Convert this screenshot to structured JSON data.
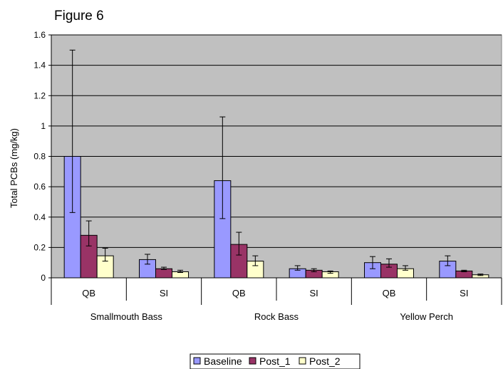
{
  "chart_data": {
    "type": "bar",
    "title": "Figure 6",
    "ylabel": "Total PCBs (mg/kg)",
    "xlabel": "",
    "ylim": [
      0,
      1.6
    ],
    "yticks": [
      0,
      0.2,
      0.4,
      0.6,
      0.8,
      1,
      1.2,
      1.4,
      1.6
    ],
    "ytick_labels": [
      "0",
      "0.2",
      "0.4",
      "0.6",
      "0.8",
      "1",
      "1.2",
      "1.4",
      "1.6"
    ],
    "grid": "horizontal",
    "legend_position": "bottom",
    "categories": [
      "QB",
      "SI",
      "QB",
      "SI",
      "QB",
      "SI"
    ],
    "groups": [
      {
        "label": "Smallmouth Bass",
        "categories": [
          "QB",
          "SI"
        ]
      },
      {
        "label": "Rock Bass",
        "categories": [
          "QB",
          "SI"
        ]
      },
      {
        "label": "Yellow Perch",
        "categories": [
          "QB",
          "SI"
        ]
      }
    ],
    "series": [
      {
        "name": "Baseline",
        "color": "#9999FF",
        "values": [
          0.8,
          0.12,
          0.64,
          0.06,
          0.1,
          0.11
        ],
        "err_low": [
          0.43,
          0.09,
          0.39,
          0.05,
          0.06,
          0.08
        ],
        "err_high": [
          1.5,
          0.155,
          1.06,
          0.08,
          0.14,
          0.145
        ]
      },
      {
        "name": "Post_1",
        "color": "#993366",
        "values": [
          0.28,
          0.06,
          0.22,
          0.05,
          0.09,
          0.045
        ],
        "err_low": [
          0.21,
          0.055,
          0.15,
          0.04,
          0.07,
          0.04
        ],
        "err_high": [
          0.375,
          0.07,
          0.3,
          0.06,
          0.125,
          0.05
        ]
      },
      {
        "name": "Post_2",
        "color": "#FFFFCC",
        "values": [
          0.145,
          0.04,
          0.11,
          0.04,
          0.06,
          0.02
        ],
        "err_low": [
          0.11,
          0.035,
          0.08,
          0.03,
          0.05,
          0.015
        ],
        "err_high": [
          0.195,
          0.05,
          0.145,
          0.045,
          0.08,
          0.025
        ]
      }
    ],
    "colors": {
      "plot_background": "#C0C0C0",
      "gridline": "#000000",
      "bar_outline": "#000000"
    }
  }
}
